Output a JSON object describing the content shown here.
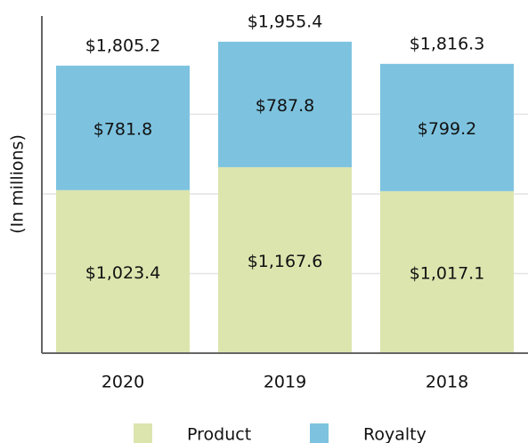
{
  "chart_data": {
    "type": "stacked_bar",
    "y_label": "(In millions)",
    "categories": [
      "2020",
      "2019",
      "2018"
    ],
    "series": [
      {
        "name": "Product",
        "color": "#dce5ae",
        "values": [
          1023.4,
          1167.6,
          1017.1
        ],
        "value_labels": [
          "$1,023.4",
          "$1,167.6",
          "$1,017.1"
        ]
      },
      {
        "name": "Royalty",
        "color": "#7dc3e0",
        "values": [
          781.8,
          787.8,
          799.2
        ],
        "value_labels": [
          "$781.8",
          "$787.8",
          "$799.2"
        ]
      }
    ],
    "totals": [
      1805.2,
      1955.4,
      1816.3
    ],
    "total_labels": [
      "$1,805.2",
      "$1,955.4",
      "$1,816.3"
    ],
    "ylim": [
      0,
      2100
    ],
    "yticks": [
      500,
      1000,
      1500
    ],
    "grid": true
  }
}
